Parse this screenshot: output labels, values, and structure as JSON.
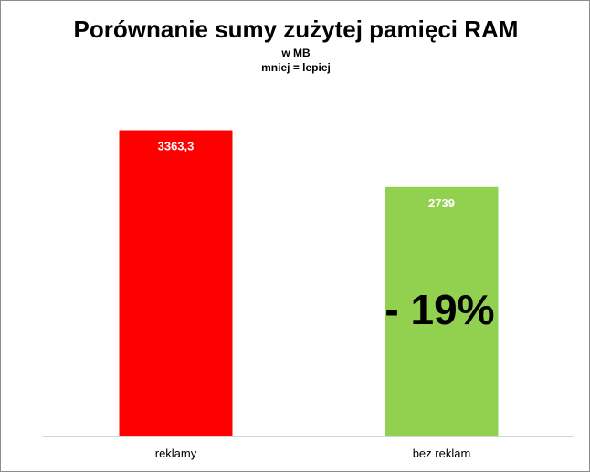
{
  "chart_data": {
    "type": "bar",
    "title": "Porównanie sumy zużytej pamięci RAM",
    "subtitle_lines": [
      "w MB",
      "mniej = lepiej"
    ],
    "xlabel": "",
    "ylabel": "",
    "categories": [
      "reklamy",
      "bez reklam"
    ],
    "values": [
      3363.3,
      2739
    ],
    "value_labels": [
      "3363,3",
      "2739"
    ],
    "bar_colors": [
      "#ff0000",
      "#92d050"
    ],
    "ylim": [
      0,
      3960
    ],
    "grid": false,
    "legend": "none",
    "annotation": "- 19%"
  },
  "colors": {
    "border": "#8c8c8c",
    "axis": "#a6a6a6",
    "bar_label_text": "#ffffff",
    "annotation_text": "#000000"
  }
}
